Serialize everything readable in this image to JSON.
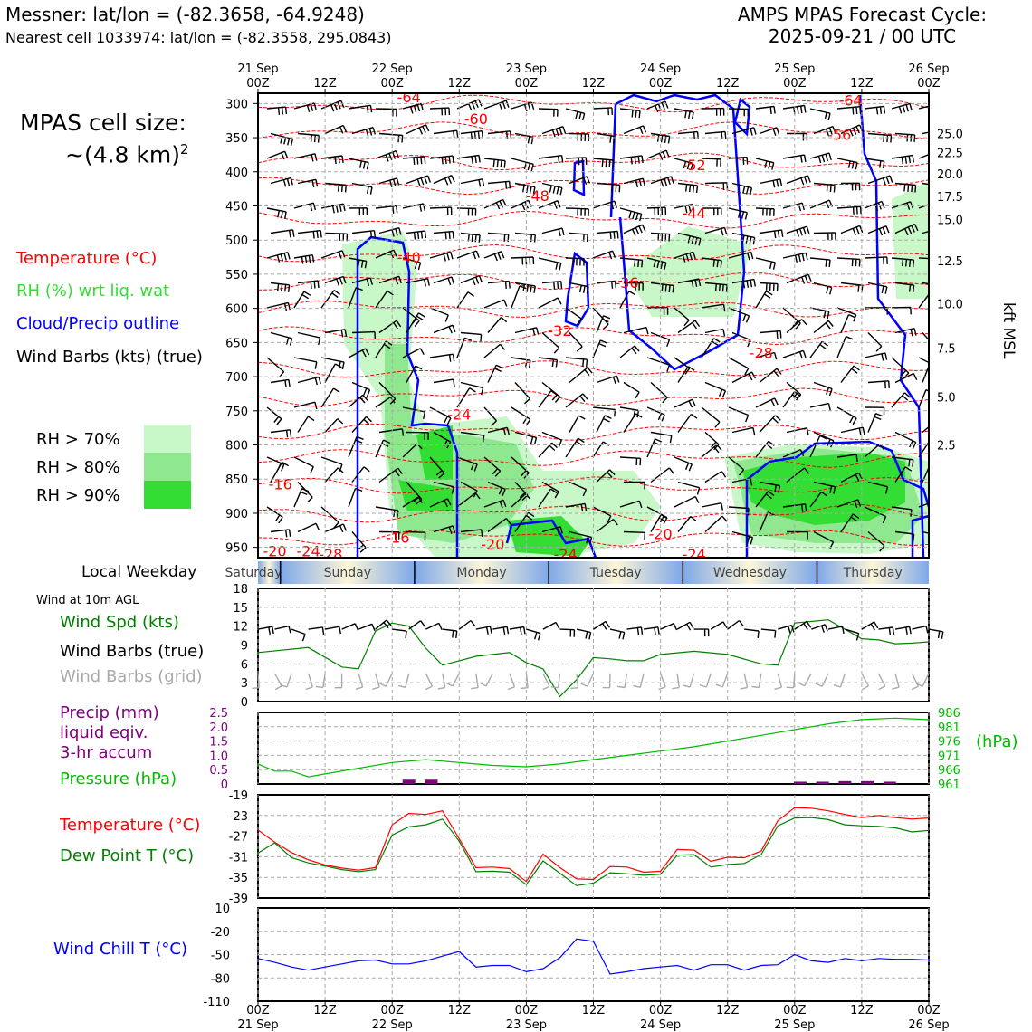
{
  "header": {
    "location_line": "Messner: lat/lon = (-82.3658, -64.9248)",
    "cell_line": "Nearest cell 1033974: lat/lon = (-82.3558, 295.0843)",
    "forecast_title": "AMPS MPAS Forecast Cycle:",
    "forecast_time": "2025-09-21 / 00 UTC"
  },
  "side": {
    "cell_size_label": "MPAS cell size:",
    "cell_size_value": "~(4.8 km)",
    "cell_size_exp": "2",
    "legend_temperature": "Temperature (°C)",
    "legend_rh": "RH (%) wrt liq. wat",
    "legend_cloud": "Cloud/Precip outline",
    "legend_wind": "Wind Barbs (kts) (true)",
    "rh_levels": [
      "RH > 70%",
      "RH > 80%",
      "RH > 90%"
    ],
    "local_weekday": "Local Weekday",
    "wind10m": "Wind at 10m AGL",
    "wind_spd": "Wind Spd (kts)",
    "wind_barbs_true": "Wind Barbs (true)",
    "wind_barbs_grid": "Wind Barbs (grid)",
    "precip1": "Precip (mm)",
    "precip2": "liquid eqiv.",
    "precip3": "3-hr accum",
    "pressure": "Pressure (hPa)",
    "pressure_unit": "(hPa)",
    "temp": "Temperature (°C)",
    "dewpoint": "Dew Point T (°C)",
    "windchill": "Wind Chill T (°C)",
    "kft_label": "kft MSL"
  },
  "colors": {
    "temperature": "#ff0000",
    "rh_light": "#c8f7c8",
    "rh_mid": "#8fe88f",
    "rh_dark": "#33dd33",
    "cloud": "#0000ff",
    "wind_speed": "#008000",
    "dewpoint": "#008000",
    "pressure": "#00bb00",
    "precip": "#800080",
    "windchill": "#0000ff",
    "grid_barbs": "#aaaaaa"
  },
  "chart_data": [
    {
      "type": "heatmap",
      "name_role": "cross-section",
      "x_top_ticks": [
        {
          "t": 0,
          "lines": [
            "21 Sep",
            "00Z"
          ]
        },
        {
          "t": 12,
          "lines": [
            "",
            "12Z"
          ]
        },
        {
          "t": 24,
          "lines": [
            "22 Sep",
            "00Z"
          ]
        },
        {
          "t": 36,
          "lines": [
            "",
            "12Z"
          ]
        },
        {
          "t": 48,
          "lines": [
            "23 Sep",
            "00Z"
          ]
        },
        {
          "t": 60,
          "lines": [
            "",
            "12Z"
          ]
        },
        {
          "t": 72,
          "lines": [
            "24 Sep",
            "00Z"
          ]
        },
        {
          "t": 84,
          "lines": [
            "",
            "12Z"
          ]
        },
        {
          "t": 96,
          "lines": [
            "25 Sep",
            "00Z"
          ]
        },
        {
          "t": 108,
          "lines": [
            "",
            "12Z"
          ]
        },
        {
          "t": 120,
          "lines": [
            "26 Sep",
            "00Z"
          ]
        }
      ],
      "xlim": [
        0,
        120
      ],
      "ylim_hpa": [
        965,
        285
      ],
      "y_ticks_hpa": [
        "300",
        "350",
        "400",
        "450",
        "500",
        "550",
        "600",
        "650",
        "700",
        "750",
        "800",
        "850",
        "900",
        "950"
      ],
      "y_ticks_kft": [
        {
          "kft": "25.0",
          "hpa": 344
        },
        {
          "kft": "22.5",
          "hpa": 372
        },
        {
          "kft": "20.0",
          "hpa": 403
        },
        {
          "kft": "17.5",
          "hpa": 436
        },
        {
          "kft": "15.0",
          "hpa": 470
        },
        {
          "kft": "12.5",
          "hpa": 530
        },
        {
          "kft": "10.0",
          "hpa": 593
        },
        {
          "kft": "7.5",
          "hpa": 658
        },
        {
          "kft": "5.0",
          "hpa": 730
        },
        {
          "kft": "2.5",
          "hpa": 800
        }
      ],
      "temp_labels": [
        {
          "text": "-64",
          "t": 27,
          "hpa": 290
        },
        {
          "text": "-60",
          "t": 39,
          "hpa": 322
        },
        {
          "text": "-64",
          "t": 106,
          "hpa": 295
        },
        {
          "text": "-56",
          "t": 104,
          "hpa": 345
        },
        {
          "text": "-52",
          "t": 78,
          "hpa": 390
        },
        {
          "text": "-48",
          "t": 50,
          "hpa": 435
        },
        {
          "text": "-44",
          "t": 78,
          "hpa": 460
        },
        {
          "text": "-40",
          "t": 27,
          "hpa": 525
        },
        {
          "text": "-36",
          "t": 66,
          "hpa": 562
        },
        {
          "text": "-32",
          "t": 54,
          "hpa": 632
        },
        {
          "text": "-28",
          "t": 90,
          "hpa": 665
        },
        {
          "text": "-24",
          "t": 36,
          "hpa": 755
        },
        {
          "text": "-16",
          "t": 4,
          "hpa": 857
        },
        {
          "text": "-16",
          "t": 25,
          "hpa": 935
        },
        {
          "text": "-20",
          "t": 42,
          "hpa": 945
        },
        {
          "text": "-20",
          "t": 72,
          "hpa": 930
        },
        {
          "text": "-20",
          "t": 3,
          "hpa": 955
        },
        {
          "text": "-24",
          "t": 9,
          "hpa": 955
        },
        {
          "text": "-28",
          "t": 13,
          "hpa": 960
        },
        {
          "text": "-24",
          "t": 78,
          "hpa": 960
        },
        {
          "text": "-24",
          "t": 55,
          "hpa": 960
        }
      ],
      "weekdays": [
        {
          "name": "Saturday",
          "t0": -8,
          "t1": 4
        },
        {
          "name": "Sunday",
          "t0": 4,
          "t1": 28
        },
        {
          "name": "Monday",
          "t0": 28,
          "t1": 52
        },
        {
          "name": "Tuesday",
          "t0": 52,
          "t1": 76
        },
        {
          "name": "Wednesday",
          "t0": 76,
          "t1": 100
        },
        {
          "name": "Thursday",
          "t0": 100,
          "t1": 120
        }
      ]
    },
    {
      "type": "line",
      "name_role": "wind10m",
      "ylim": [
        0,
        18
      ],
      "y_ticks": [
        "0",
        "3",
        "6",
        "9",
        "12",
        "15",
        "18"
      ],
      "x": [
        0,
        9,
        15,
        18,
        21,
        24,
        27,
        30,
        33,
        36,
        39,
        42,
        45,
        48,
        51,
        54,
        57,
        60,
        63,
        66,
        69,
        72,
        78,
        84,
        90,
        93,
        96,
        102,
        105,
        108,
        111,
        114,
        117,
        120
      ],
      "series": [
        {
          "values": [
            7.8,
            8.6,
            5.5,
            5.2,
            11.2,
            12.5,
            12,
            8.5,
            5.8,
            6.5,
            7.2,
            7.5,
            7.8,
            6.2,
            5.2,
            0.8,
            3.5,
            7,
            6.8,
            6.5,
            6.5,
            7.5,
            8,
            7.5,
            6,
            5.8,
            12.5,
            13,
            11.5,
            10,
            9.8,
            9.2,
            9.3,
            9.5
          ]
        }
      ]
    },
    {
      "type": "line",
      "name_role": "precip-pressure",
      "precip_ylim": [
        0,
        2.5
      ],
      "precip_ticks": [
        "0",
        "0.5",
        "1.0",
        "1.5",
        "2.0",
        "2.5"
      ],
      "pressure_ylim": [
        961,
        986
      ],
      "pressure_ticks": [
        "961",
        "966",
        "971",
        "976",
        "981",
        "986"
      ],
      "pressure_x": [
        0,
        3,
        6,
        9,
        12,
        18,
        24,
        30,
        36,
        42,
        48,
        54,
        60,
        66,
        72,
        78,
        84,
        90,
        96,
        102,
        108,
        114,
        120
      ],
      "pressure_values": [
        968,
        965.5,
        965.5,
        963.5,
        964.5,
        966.5,
        968.5,
        969.5,
        968.5,
        967.5,
        967,
        968,
        969.5,
        971,
        972.5,
        974,
        976,
        978,
        980,
        982,
        983.5,
        984,
        983.5
      ],
      "precip_bars": [
        {
          "t": 27,
          "mm": 0.15
        },
        {
          "t": 31,
          "mm": 0.15
        },
        {
          "t": 97,
          "mm": 0.08
        },
        {
          "t": 101,
          "mm": 0.08
        },
        {
          "t": 105,
          "mm": 0.1
        },
        {
          "t": 109,
          "mm": 0.1
        },
        {
          "t": 113,
          "mm": 0.08
        }
      ]
    },
    {
      "type": "line",
      "name_role": "temperature",
      "ylim": [
        -39,
        -19
      ],
      "y_ticks": [
        "-19",
        "-23",
        "-27",
        "-31",
        "-35",
        "-39"
      ],
      "x": [
        0,
        3,
        6,
        9,
        12,
        15,
        18,
        21,
        24,
        27,
        30,
        33,
        36,
        39,
        42,
        45,
        48,
        51,
        54,
        57,
        60,
        63,
        66,
        69,
        72,
        75,
        78,
        81,
        84,
        87,
        90,
        93,
        96,
        99,
        102,
        105,
        108,
        111,
        114,
        117,
        120
      ],
      "series": [
        {
          "values": [
            -25.8,
            -28.2,
            -30.2,
            -31.6,
            -32.6,
            -33.2,
            -33.6,
            -33.1,
            -24.8,
            -22.6,
            -22.8,
            -22.1,
            -27.5,
            -33.1,
            -33.0,
            -33.3,
            -35.8,
            -30.5,
            -33.1,
            -35.3,
            -35.4,
            -32.9,
            -33.0,
            -34.0,
            -33.8,
            -29.6,
            -29.7,
            -31.9,
            -31.1,
            -31.2,
            -29.9,
            -24.0,
            -21.5,
            -21.6,
            -22.1,
            -22.8,
            -23.4,
            -23.0,
            -23.4,
            -23.7,
            -23.5
          ]
        },
        {
          "values": [
            -30.3,
            -28.3,
            -31.2,
            -32.2,
            -32.8,
            -33.5,
            -33.9,
            -33.5,
            -26.8,
            -25.2,
            -24.8,
            -23.7,
            -28.0,
            -33.9,
            -33.8,
            -34.0,
            -36.4,
            -31.8,
            -34.2,
            -36.6,
            -36.1,
            -34.1,
            -34.3,
            -34.6,
            -34.4,
            -30.7,
            -30.6,
            -33.0,
            -32.5,
            -32.3,
            -30.6,
            -25.0,
            -23.5,
            -23.4,
            -23.8,
            -24.8,
            -25.0,
            -25.1,
            -25.4,
            -26.2,
            -25.9
          ]
        }
      ]
    },
    {
      "type": "line",
      "name_role": "windchill",
      "ylim": [
        -110,
        10
      ],
      "y_ticks": [
        "10",
        "-20",
        "-50",
        "-80",
        "-110"
      ],
      "x": [
        0,
        3,
        6,
        9,
        12,
        15,
        18,
        21,
        24,
        27,
        30,
        33,
        36,
        39,
        42,
        45,
        48,
        51,
        54,
        57,
        60,
        63,
        66,
        69,
        72,
        75,
        78,
        81,
        84,
        87,
        90,
        93,
        96,
        99,
        102,
        105,
        108,
        111,
        114,
        117,
        120
      ],
      "series": [
        {
          "values": [
            -55,
            -60,
            -66,
            -70,
            -66,
            -62,
            -58,
            -57,
            -62,
            -62,
            -58,
            -52,
            -46,
            -66,
            -64,
            -64,
            -72,
            -68,
            -54,
            -30,
            -33,
            -75,
            -72,
            -68,
            -66,
            -64,
            -70,
            -63,
            -63,
            -70,
            -64,
            -63,
            -50,
            -58,
            -60,
            -55,
            -58,
            -55,
            -56,
            -56,
            -57
          ]
        }
      ]
    }
  ]
}
